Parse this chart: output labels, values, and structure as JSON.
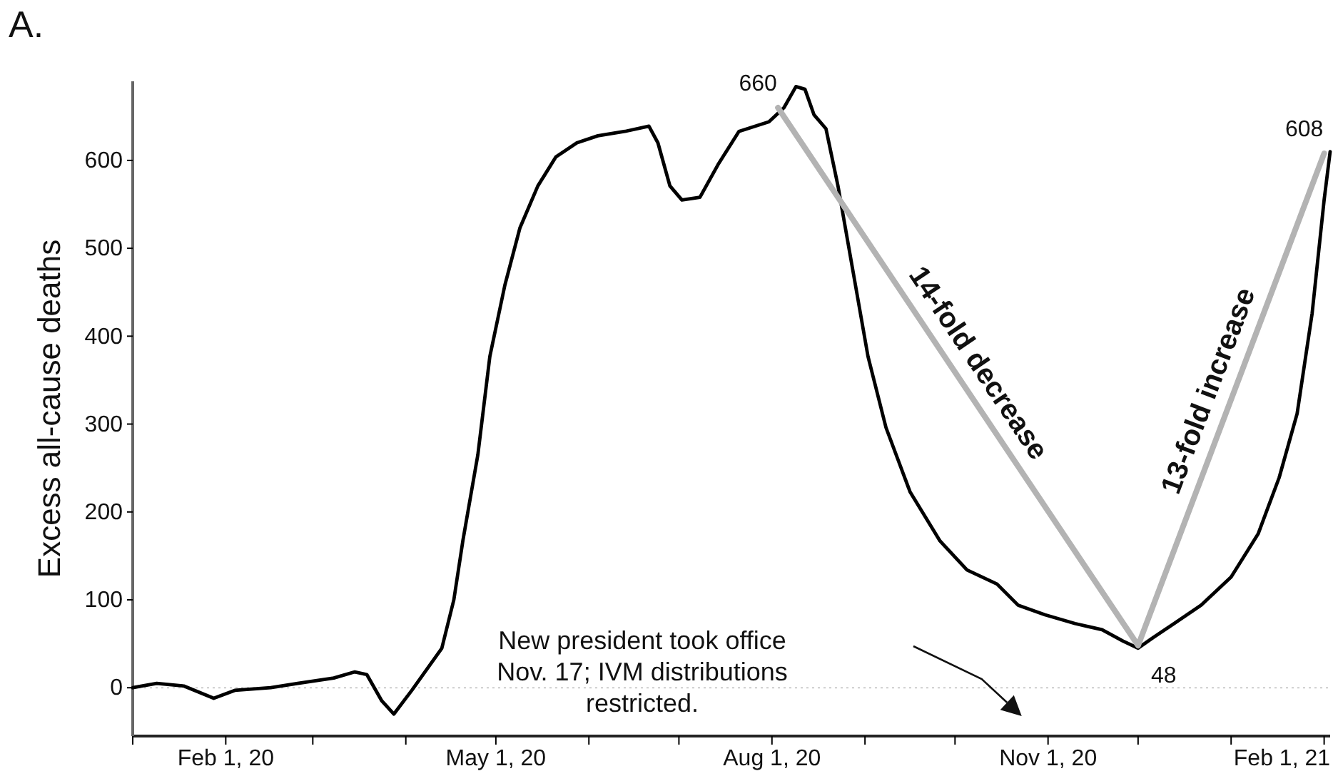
{
  "chart_data": {
    "type": "line",
    "title": "A.",
    "ylabel": "Excess all-cause deaths",
    "xlim": [
      "2020-01-01",
      "2021-02-03"
    ],
    "xticks": [
      {
        "value": "2020-01-01",
        "label": null
      },
      {
        "value": "2020-02-01",
        "label": "Feb 1, 20"
      },
      {
        "value": "2020-03-01",
        "label": null
      },
      {
        "value": "2020-04-01",
        "label": null
      },
      {
        "value": "2020-05-01",
        "label": "May 1, 20"
      },
      {
        "value": "2020-06-01",
        "label": null
      },
      {
        "value": "2020-07-01",
        "label": null
      },
      {
        "value": "2020-08-01",
        "label": "Aug 1, 20"
      },
      {
        "value": "2020-09-01",
        "label": null
      },
      {
        "value": "2020-10-01",
        "label": null
      },
      {
        "value": "2020-11-01",
        "label": "Nov 1, 20"
      },
      {
        "value": "2020-12-01",
        "label": null
      },
      {
        "value": "2021-01-01",
        "label": null
      },
      {
        "value": "2021-02-01",
        "label": "Feb 1, 21"
      }
    ],
    "ylim": [
      -55,
      690
    ],
    "yticks": [
      0,
      100,
      200,
      300,
      400,
      500,
      600
    ],
    "grid": false,
    "marker": "none",
    "line_style": "solid",
    "series": [
      {
        "color": "#000000",
        "x": [
          "2020-01-01",
          "2020-01-09",
          "2020-01-18",
          "2020-01-28",
          "2020-02-04",
          "2020-02-16",
          "2020-02-25",
          "2020-03-08",
          "2020-03-15",
          "2020-03-19",
          "2020-03-24",
          "2020-03-28",
          "2020-04-03",
          "2020-04-08",
          "2020-04-13",
          "2020-04-17",
          "2020-04-20",
          "2020-04-25",
          "2020-04-29",
          "2020-05-04",
          "2020-05-09",
          "2020-05-15",
          "2020-05-21",
          "2020-05-28",
          "2020-06-04",
          "2020-06-13",
          "2020-06-21",
          "2020-06-24",
          "2020-06-28",
          "2020-07-02",
          "2020-07-08",
          "2020-07-14",
          "2020-07-21",
          "2020-07-31",
          "2020-08-05",
          "2020-08-09",
          "2020-08-12",
          "2020-08-15",
          "2020-08-19",
          "2020-08-23",
          "2020-08-28",
          "2020-09-02",
          "2020-09-08",
          "2020-09-16",
          "2020-09-26",
          "2020-10-05",
          "2020-10-15",
          "2020-10-22",
          "2020-10-31",
          "2020-11-10",
          "2020-11-19",
          "2020-11-26",
          "2020-12-01",
          "2020-12-06",
          "2020-12-13",
          "2020-12-22",
          "2021-01-01",
          "2021-01-10",
          "2021-01-17",
          "2021-01-23",
          "2021-01-28",
          "2021-02-01",
          "2021-02-03"
        ],
        "values": [
          0,
          5,
          2,
          -12,
          -3,
          0,
          5,
          11,
          18,
          15,
          -15,
          -30,
          -3,
          21,
          45,
          100,
          167,
          265,
          377,
          458,
          523,
          571,
          604,
          620,
          628,
          633,
          639,
          620,
          571,
          555,
          558,
          595,
          633,
          644,
          660,
          684,
          681,
          652,
          636,
          571,
          474,
          377,
          296,
          223,
          167,
          134,
          118,
          94,
          83,
          73,
          66,
          53,
          45,
          57,
          73,
          94,
          126,
          175,
          239,
          312,
          426,
          555,
          610
        ]
      },
      {
        "color": "#b3b3b3",
        "x": [
          "2020-08-03",
          "2020-12-01",
          "2021-02-01"
        ],
        "values": [
          660,
          48,
          608
        ],
        "value_labels": [
          "660",
          "48",
          "608"
        ]
      }
    ],
    "ref_lines": [
      {
        "axis": "y",
        "value": 0,
        "color": "#cccccc",
        "line_style": "dotted"
      }
    ],
    "annotations": [
      "14-fold decrease",
      "13-fold increase",
      "New president took office\nNov. 17; IVM distributions\nrestricted."
    ]
  }
}
